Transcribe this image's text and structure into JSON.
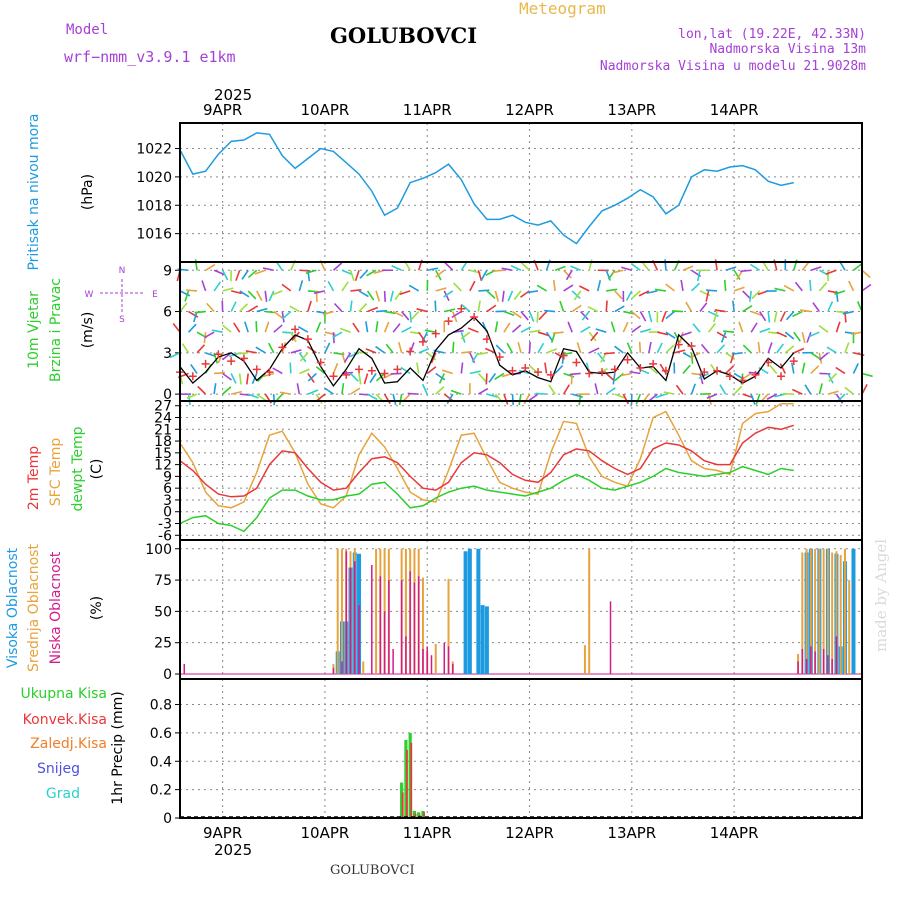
{
  "header": {
    "model_label": "Model",
    "model_name": "wrf−nmm_v3.9.1  e1km",
    "station": "GOLUBOVCI",
    "product": "Meteogram",
    "lonlat": "lon,lat (19.22E, 42.33N)",
    "elevation": "Nadmorska Visina 13m",
    "model_elevation": "Nadmorska Visina u modelu 21.9028m",
    "footer_station": "GOLUBOVCI",
    "watermark": "made by Angel"
  },
  "colors": {
    "pressure": "#1e9be0",
    "temp2m": "#e8383a",
    "sfc": "#e8a33c",
    "dewpt": "#2ccf2c",
    "high_cloud": "#1e9be0",
    "mid_cloud": "#e8a33c",
    "low_cloud": "#d21c8c",
    "total_precip": "#2ccf2c",
    "conv_precip": "#e8383a",
    "grid_precip": "#ef7f2a",
    "snow": "#5050e0",
    "graupel": "#2ccfcf",
    "wind_speed": "#000000",
    "gust_marker": "#e8383a",
    "purple_text": "#a640d6",
    "orange_title": "#e8b84a"
  },
  "chart_data": [
    {
      "type": "line",
      "name": "pressure",
      "ylabel_lines": [
        "Pritisak na nivou mora"
      ],
      "unit": "(hPa)",
      "yticks": [
        1016,
        1018,
        1020,
        1022
      ],
      "ylim": [
        1014.0,
        1023.8
      ],
      "x": [
        0,
        3,
        6,
        9,
        12,
        15,
        18,
        21,
        24,
        27,
        30,
        33,
        36,
        39,
        42,
        45,
        48,
        51,
        54,
        57,
        60,
        63,
        66,
        69,
        72,
        75,
        78,
        81,
        84,
        87,
        90,
        93,
        96,
        99,
        102,
        105,
        108,
        111,
        114,
        117,
        120,
        123,
        126,
        129,
        132,
        135,
        138,
        141,
        144
      ],
      "series": [
        {
          "values": [
            1021.9,
            1020.2,
            1020.4,
            1021.6,
            1022.5,
            1022.6,
            1023.1,
            1023.0,
            1021.5,
            1020.6,
            1021.3,
            1022.0,
            1021.8,
            1021.0,
            1020.2,
            1019.0,
            1017.3,
            1017.8,
            1019.6,
            1019.9,
            1020.3,
            1020.9,
            1019.8,
            1018.1,
            1017.0,
            1017.0,
            1017.3,
            1016.8,
            1016.6,
            1016.9,
            1015.9,
            1015.3,
            1016.5,
            1017.6,
            1018.0,
            1018.5,
            1019.1,
            1018.6,
            1017.4,
            1018.0,
            1020.0,
            1020.5,
            1020.4,
            1020.7,
            1020.8,
            1020.5,
            1019.7,
            1019.4,
            1019.6
          ]
        }
      ]
    },
    {
      "type": "line",
      "name": "wind",
      "ylabel_lines": [
        "10m Vjetar",
        "Brzina i Pravac"
      ],
      "unit": "(m/s)",
      "compass_labels": [
        "N",
        "W",
        "E",
        "S"
      ],
      "yticks": [
        0,
        3,
        6,
        9
      ],
      "ylim": [
        -0.5,
        9.6
      ],
      "x": [
        0,
        3,
        6,
        9,
        12,
        15,
        18,
        21,
        24,
        27,
        30,
        33,
        36,
        39,
        42,
        45,
        48,
        51,
        54,
        57,
        60,
        63,
        66,
        69,
        72,
        75,
        78,
        81,
        84,
        87,
        90,
        93,
        96,
        99,
        102,
        105,
        108,
        111,
        114,
        117,
        120,
        123,
        126,
        129,
        132,
        135,
        138,
        141,
        144
      ],
      "series": [
        {
          "values": [
            2.0,
            0.8,
            1.6,
            2.7,
            3.0,
            2.4,
            1.0,
            1.8,
            3.3,
            4.3,
            3.9,
            2.0,
            0.6,
            1.8,
            3.3,
            2.6,
            0.8,
            0.9,
            1.9,
            1.0,
            3.2,
            4.3,
            4.8,
            5.6,
            4.6,
            2.1,
            1.4,
            1.7,
            1.2,
            0.9,
            3.3,
            3.1,
            1.6,
            1.5,
            1.6,
            3.0,
            1.9,
            2.0,
            1.0,
            4.3,
            3.4,
            1.1,
            1.7,
            1.4,
            0.8,
            1.3,
            2.6,
            1.9,
            3.0
          ]
        },
        {
          "values": [
            1.6,
            1.3,
            2.2,
            2.9,
            2.4,
            2.6,
            1.8,
            1.6,
            3.4,
            4.7,
            4.0,
            2.3,
            1.3,
            1.4,
            1.8,
            1.7,
            1.5,
            1.8,
            3.1,
            3.8,
            4.4,
            5.3,
            6.2,
            5.6,
            4.0,
            2.7,
            1.7,
            1.9,
            1.6,
            1.4,
            2.8,
            2.3,
            1.5,
            1.6,
            1.8,
            2.5,
            1.9,
            2.2,
            1.7,
            3.6,
            3.5,
            1.6,
            1.7,
            1.3,
            1.0,
            1.4,
            2.3,
            1.3,
            2.4
          ]
        }
      ]
    },
    {
      "type": "line",
      "name": "temperature",
      "ylabel_lines": [
        "2m Temp",
        "SFC Temp",
        "dewpt Temp"
      ],
      "unit": "(C)",
      "yticks": [
        -6,
        -3,
        0,
        3,
        6,
        9,
        12,
        15,
        18,
        21,
        24,
        27
      ],
      "ylim": [
        -7.2,
        28.2
      ],
      "x": [
        0,
        3,
        6,
        9,
        12,
        15,
        18,
        21,
        24,
        27,
        30,
        33,
        36,
        39,
        42,
        45,
        48,
        51,
        54,
        57,
        60,
        63,
        66,
        69,
        72,
        75,
        78,
        81,
        84,
        87,
        90,
        93,
        96,
        99,
        102,
        105,
        108,
        111,
        114,
        117,
        120,
        123,
        126,
        129,
        132,
        135,
        138,
        141,
        144
      ],
      "series": [
        {
          "values": [
            13.0,
            10.5,
            7.0,
            4.5,
            3.8,
            4.0,
            6.0,
            12.0,
            15.5,
            15.0,
            11.0,
            7.5,
            5.5,
            6.0,
            10.0,
            13.5,
            14.0,
            12.5,
            9.0,
            6.0,
            5.5,
            7.5,
            12.5,
            15.0,
            14.5,
            12.5,
            9.5,
            8.0,
            7.5,
            10.0,
            14.5,
            16.0,
            15.5,
            13.0,
            11.0,
            9.5,
            11.0,
            16.0,
            17.5,
            17.0,
            15.5,
            13.0,
            12.0,
            12.0,
            17.5,
            20.0,
            21.5,
            21.0,
            22.0
          ]
        },
        {
          "values": [
            17.5,
            12.5,
            5.0,
            1.5,
            1.0,
            2.5,
            10.0,
            19.5,
            20.5,
            15.0,
            7.0,
            2.0,
            1.0,
            4.0,
            14.5,
            20.0,
            16.5,
            11.0,
            5.0,
            3.0,
            2.5,
            10.5,
            19.5,
            20.0,
            13.5,
            7.5,
            6.0,
            5.0,
            4.5,
            15.0,
            23.0,
            22.5,
            14.0,
            9.0,
            7.5,
            6.5,
            13.5,
            24.0,
            25.5,
            19.5,
            13.0,
            11.0,
            10.5,
            9.5,
            22.5,
            25.0,
            25.5,
            27.5,
            27.5
          ]
        },
        {
          "values": [
            -3.0,
            -1.5,
            -1.0,
            -3.0,
            -3.5,
            -5.0,
            -1.5,
            3.5,
            5.5,
            5.5,
            4.0,
            3.0,
            3.0,
            4.0,
            4.5,
            7.0,
            7.5,
            4.5,
            1.0,
            1.5,
            3.5,
            5.0,
            6.0,
            6.5,
            5.5,
            5.0,
            4.5,
            4.0,
            5.0,
            6.0,
            8.0,
            9.5,
            8.0,
            6.0,
            5.5,
            6.5,
            7.5,
            9.0,
            11.0,
            10.0,
            9.5,
            9.0,
            9.5,
            10.0,
            11.5,
            10.5,
            9.5,
            11.0,
            10.5
          ]
        }
      ]
    },
    {
      "type": "bar",
      "name": "clouds",
      "ylabel_lines": [
        "Visoka Oblacnost",
        "Srednja Oblacnost",
        "Niska Oblacnost"
      ],
      "unit": "(%)",
      "yticks": [
        0,
        25,
        50,
        75,
        100
      ],
      "ylim": [
        -4,
        107
      ],
      "high": [
        [
          37,
          18
        ],
        [
          38,
          42
        ],
        [
          39,
          42
        ],
        [
          40,
          85
        ],
        [
          41,
          97
        ],
        [
          42,
          96
        ],
        [
          67,
          98
        ],
        [
          68,
          100
        ],
        [
          70,
          100
        ],
        [
          71,
          55
        ],
        [
          72,
          54
        ],
        [
          147,
          97
        ],
        [
          148,
          100
        ],
        [
          150,
          100
        ],
        [
          152,
          100
        ],
        [
          154,
          96
        ],
        [
          155,
          22
        ],
        [
          156,
          90
        ],
        [
          158,
          100
        ]
      ],
      "mid": [
        [
          36,
          8
        ],
        [
          37,
          100
        ],
        [
          38,
          100
        ],
        [
          39,
          100
        ],
        [
          40,
          98
        ],
        [
          41,
          100
        ],
        [
          43,
          10
        ],
        [
          46,
          100
        ],
        [
          47,
          100
        ],
        [
          48,
          100
        ],
        [
          49,
          100
        ],
        [
          52,
          100
        ],
        [
          53,
          100
        ],
        [
          54,
          100
        ],
        [
          55,
          100
        ],
        [
          56,
          100
        ],
        [
          57,
          77
        ],
        [
          58,
          18
        ],
        [
          60,
          24
        ],
        [
          63,
          76
        ],
        [
          64,
          10
        ],
        [
          95,
          23
        ],
        [
          96,
          100
        ],
        [
          145,
          16
        ],
        [
          146,
          97
        ],
        [
          147,
          100
        ],
        [
          148,
          100
        ],
        [
          149,
          100
        ],
        [
          150,
          100
        ],
        [
          151,
          100
        ],
        [
          152,
          100
        ],
        [
          153,
          97
        ],
        [
          154,
          98
        ],
        [
          155,
          95
        ],
        [
          156,
          100
        ],
        [
          157,
          75
        ]
      ],
      "low": [
        [
          1,
          8
        ],
        [
          36,
          5
        ],
        [
          38,
          10
        ],
        [
          39,
          98
        ],
        [
          40,
          85
        ],
        [
          41,
          90
        ],
        [
          42,
          55
        ],
        [
          45,
          87
        ],
        [
          47,
          78
        ],
        [
          48,
          50
        ],
        [
          49,
          75
        ],
        [
          50,
          20
        ],
        [
          52,
          75
        ],
        [
          53,
          30
        ],
        [
          54,
          82
        ],
        [
          55,
          73
        ],
        [
          56,
          78
        ],
        [
          57,
          20
        ],
        [
          58,
          22
        ],
        [
          59,
          15
        ],
        [
          62,
          25
        ],
        [
          63,
          22
        ],
        [
          64,
          8
        ],
        [
          101,
          58
        ],
        [
          145,
          10
        ],
        [
          146,
          20
        ],
        [
          147,
          12
        ],
        [
          148,
          22
        ],
        [
          149,
          18
        ],
        [
          151,
          20
        ],
        [
          152,
          15
        ],
        [
          153,
          12
        ],
        [
          154,
          30
        ]
      ]
    },
    {
      "type": "bar",
      "name": "precip",
      "legend": [
        "Ukupna Kisa",
        "Konvek.Kisa",
        "Zaledj.Kisa",
        "Snijeg",
        "Grad"
      ],
      "ylabel": "1hr Precip (mm)",
      "yticks": [
        0,
        0.2,
        0.4,
        0.6,
        0.8
      ],
      "ylim": [
        0,
        0.98
      ],
      "total": [
        [
          43,
          0.01
        ],
        [
          44,
          0.01
        ],
        [
          45,
          0.01
        ],
        [
          50,
          0.01
        ],
        [
          51,
          0.01
        ],
        [
          52,
          0.25
        ],
        [
          53,
          0.55
        ],
        [
          54,
          0.6
        ],
        [
          55,
          0.05
        ],
        [
          56,
          0.04
        ],
        [
          57,
          0.05
        ]
      ],
      "conv": [
        [
          52,
          0.18
        ],
        [
          53,
          0.48
        ],
        [
          54,
          0.53
        ],
        [
          55,
          0.03
        ],
        [
          56,
          0.02
        ],
        [
          57,
          0.04
        ]
      ]
    }
  ],
  "x_axis": {
    "year": "2025",
    "day_labels": [
      "9APR",
      "10APR",
      "11APR",
      "12APR",
      "13APR",
      "14APR"
    ]
  }
}
